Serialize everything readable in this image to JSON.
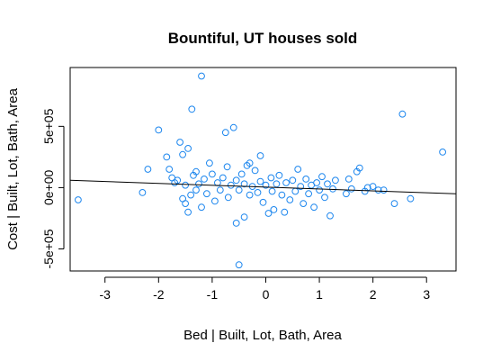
{
  "chart_data": {
    "type": "scatter",
    "title": "Bountiful, UT houses sold",
    "xlabel": "Bed | Built, Lot, Bath, Area",
    "ylabel": "Cost | Built, Lot, Bath, Area",
    "xlim": [
      -3.65,
      3.55
    ],
    "ylim": [
      -680000,
      980000
    ],
    "x_ticks": [
      -3,
      -2,
      -1,
      0,
      1,
      2,
      3
    ],
    "x_tick_labels": [
      "-3",
      "-2",
      "-1",
      "0",
      "1",
      "2",
      "3"
    ],
    "y_ticks": [
      -500000,
      0,
      500000
    ],
    "y_tick_labels": [
      "-5e+05",
      "0e+00",
      "5e+05"
    ],
    "grid": false,
    "point_color": "#1c86ee",
    "line_color": "#000000",
    "regression_line": {
      "x": [
        -3.65,
        3.55
      ],
      "y": [
        60000,
        -50000
      ]
    },
    "points": [
      {
        "x": -3.5,
        "y": -100000
      },
      {
        "x": -2.3,
        "y": -40000
      },
      {
        "x": -2.2,
        "y": 150000
      },
      {
        "x": -2.0,
        "y": 470000
      },
      {
        "x": -1.85,
        "y": 250000
      },
      {
        "x": -1.8,
        "y": 150000
      },
      {
        "x": -1.75,
        "y": 80000
      },
      {
        "x": -1.7,
        "y": 40000
      },
      {
        "x": -1.65,
        "y": 60000
      },
      {
        "x": -1.6,
        "y": 370000
      },
      {
        "x": -1.55,
        "y": 270000
      },
      {
        "x": -1.55,
        "y": -90000
      },
      {
        "x": -1.5,
        "y": 20000
      },
      {
        "x": -1.5,
        "y": -130000
      },
      {
        "x": -1.45,
        "y": -200000
      },
      {
        "x": -1.45,
        "y": 320000
      },
      {
        "x": -1.4,
        "y": -60000
      },
      {
        "x": -1.38,
        "y": 640000
      },
      {
        "x": -1.35,
        "y": 100000
      },
      {
        "x": -1.3,
        "y": 130000
      },
      {
        "x": -1.3,
        "y": -20000
      },
      {
        "x": -1.25,
        "y": 30000
      },
      {
        "x": -1.2,
        "y": -160000
      },
      {
        "x": -1.2,
        "y": 910000
      },
      {
        "x": -1.15,
        "y": 70000
      },
      {
        "x": -1.1,
        "y": -50000
      },
      {
        "x": -1.05,
        "y": 200000
      },
      {
        "x": -1.0,
        "y": 110000
      },
      {
        "x": -0.95,
        "y": -110000
      },
      {
        "x": -0.9,
        "y": 40000
      },
      {
        "x": -0.85,
        "y": -20000
      },
      {
        "x": -0.8,
        "y": 80000
      },
      {
        "x": -0.75,
        "y": 450000
      },
      {
        "x": -0.72,
        "y": 170000
      },
      {
        "x": -0.7,
        "y": -80000
      },
      {
        "x": -0.65,
        "y": 20000
      },
      {
        "x": -0.6,
        "y": 490000
      },
      {
        "x": -0.55,
        "y": -290000
      },
      {
        "x": -0.55,
        "y": 60000
      },
      {
        "x": -0.5,
        "y": -630000
      },
      {
        "x": -0.5,
        "y": -20000
      },
      {
        "x": -0.45,
        "y": 110000
      },
      {
        "x": -0.4,
        "y": -240000
      },
      {
        "x": -0.4,
        "y": 30000
      },
      {
        "x": -0.35,
        "y": 180000
      },
      {
        "x": -0.3,
        "y": -60000
      },
      {
        "x": -0.3,
        "y": 200000
      },
      {
        "x": -0.25,
        "y": 10000
      },
      {
        "x": -0.2,
        "y": 140000
      },
      {
        "x": -0.15,
        "y": -40000
      },
      {
        "x": -0.1,
        "y": 260000
      },
      {
        "x": -0.1,
        "y": 50000
      },
      {
        "x": -0.05,
        "y": -120000
      },
      {
        "x": 0.0,
        "y": 20000
      },
      {
        "x": 0.05,
        "y": -210000
      },
      {
        "x": 0.1,
        "y": 80000
      },
      {
        "x": 0.12,
        "y": -30000
      },
      {
        "x": 0.15,
        "y": -180000
      },
      {
        "x": 0.2,
        "y": 30000
      },
      {
        "x": 0.25,
        "y": 100000
      },
      {
        "x": 0.3,
        "y": -60000
      },
      {
        "x": 0.35,
        "y": -200000
      },
      {
        "x": 0.38,
        "y": 40000
      },
      {
        "x": 0.45,
        "y": -100000
      },
      {
        "x": 0.5,
        "y": 60000
      },
      {
        "x": 0.55,
        "y": -30000
      },
      {
        "x": 0.6,
        "y": 150000
      },
      {
        "x": 0.65,
        "y": 10000
      },
      {
        "x": 0.7,
        "y": -130000
      },
      {
        "x": 0.75,
        "y": 70000
      },
      {
        "x": 0.8,
        "y": -50000
      },
      {
        "x": 0.85,
        "y": 20000
      },
      {
        "x": 0.9,
        "y": -160000
      },
      {
        "x": 0.95,
        "y": 40000
      },
      {
        "x": 1.0,
        "y": -20000
      },
      {
        "x": 1.05,
        "y": 90000
      },
      {
        "x": 1.1,
        "y": -80000
      },
      {
        "x": 1.15,
        "y": 30000
      },
      {
        "x": 1.2,
        "y": -230000
      },
      {
        "x": 1.25,
        "y": -10000
      },
      {
        "x": 1.3,
        "y": 60000
      },
      {
        "x": 1.5,
        "y": -50000
      },
      {
        "x": 1.55,
        "y": 70000
      },
      {
        "x": 1.6,
        "y": -10000
      },
      {
        "x": 1.7,
        "y": 130000
      },
      {
        "x": 1.75,
        "y": 160000
      },
      {
        "x": 1.85,
        "y": -30000
      },
      {
        "x": 1.9,
        "y": 0
      },
      {
        "x": 2.0,
        "y": 10000
      },
      {
        "x": 2.1,
        "y": -20000
      },
      {
        "x": 2.2,
        "y": -20000
      },
      {
        "x": 2.4,
        "y": -130000
      },
      {
        "x": 2.55,
        "y": 600000
      },
      {
        "x": 2.7,
        "y": -90000
      },
      {
        "x": 3.3,
        "y": 290000
      }
    ]
  }
}
